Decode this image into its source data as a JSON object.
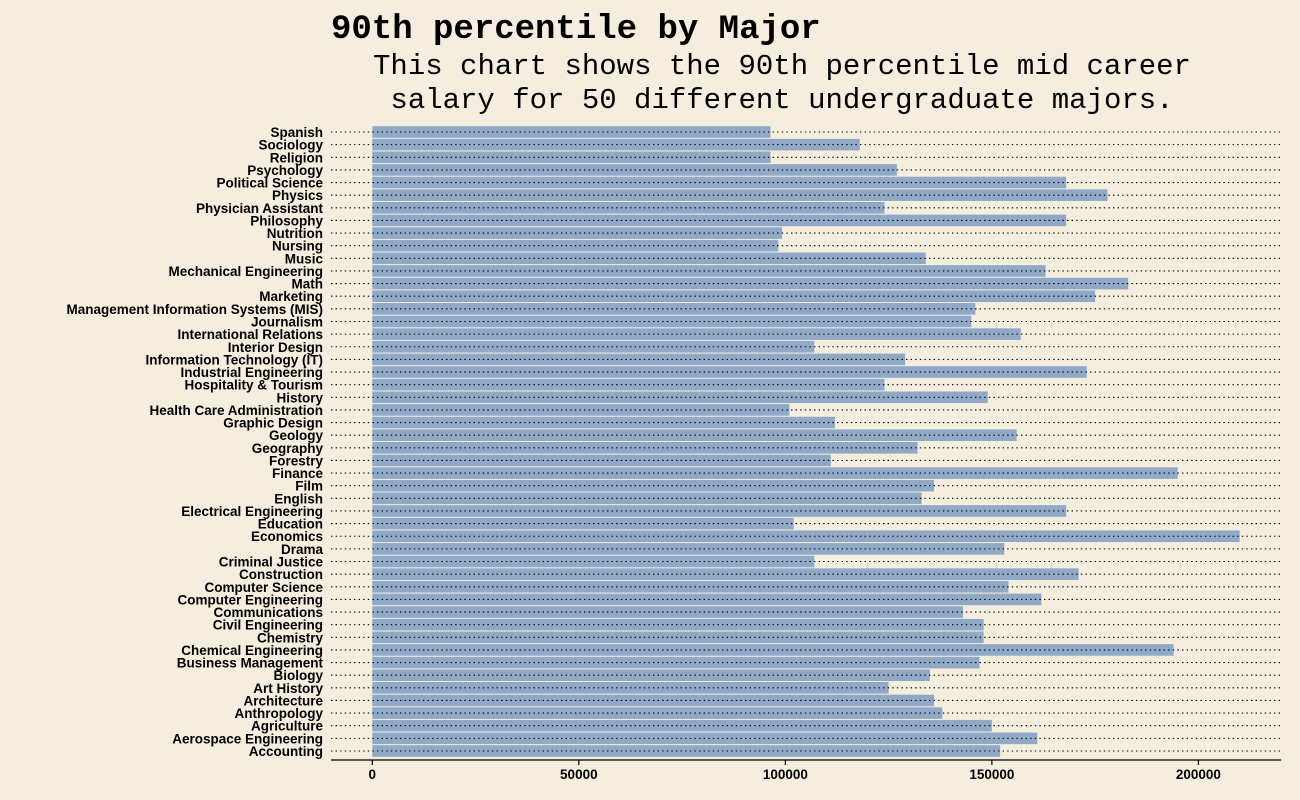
{
  "chart_data": {
    "type": "bar",
    "orientation": "horizontal",
    "title": "90th percentile by Major",
    "subtitle": "This chart shows the 90th percentile mid career salary for 50 different undergraduate majors.",
    "xlabel": "",
    "ylabel": "",
    "xlim": [
      -10000,
      220000
    ],
    "xticks": [
      0,
      50000,
      100000,
      150000,
      200000
    ],
    "grid": "horizontal-dotted",
    "bar_color": "#8fa9c6",
    "background": "#f5eedf",
    "categories": [
      "Spanish",
      "Sociology",
      "Religion",
      "Psychology",
      "Political Science",
      "Physics",
      "Physician Assistant",
      "Philosophy",
      "Nutrition",
      "Nursing",
      "Music",
      "Mechanical Engineering",
      "Math",
      "Marketing",
      "Management Information Systems (MIS)",
      "Journalism",
      "International Relations",
      "Interior Design",
      "Information Technology (IT)",
      "Industrial Engineering",
      "Hospitality & Tourism",
      "History",
      "Health Care Administration",
      "Graphic Design",
      "Geology",
      "Geography",
      "Forestry",
      "Finance",
      "Film",
      "English",
      "Electrical Engineering",
      "Education",
      "Economics",
      "Drama",
      "Criminal Justice",
      "Construction",
      "Computer Science",
      "Computer Engineering",
      "Communications",
      "Civil Engineering",
      "Chemistry",
      "Chemical Engineering",
      "Business Management",
      "Biology",
      "Art History",
      "Architecture",
      "Anthropology",
      "Agriculture",
      "Aerospace Engineering",
      "Accounting"
    ],
    "values": [
      96400,
      118000,
      96400,
      127000,
      168000,
      178000,
      124000,
      168000,
      99200,
      98300,
      134000,
      163000,
      183000,
      175000,
      146000,
      145000,
      157000,
      107000,
      129000,
      173000,
      124000,
      149000,
      101000,
      112000,
      156000,
      132000,
      111000,
      195000,
      136000,
      133000,
      168000,
      102000,
      210000,
      153000,
      107000,
      171000,
      154000,
      162000,
      143000,
      148000,
      148000,
      194000,
      147000,
      135000,
      125000,
      136000,
      138000,
      150000,
      161000,
      152000
    ]
  }
}
